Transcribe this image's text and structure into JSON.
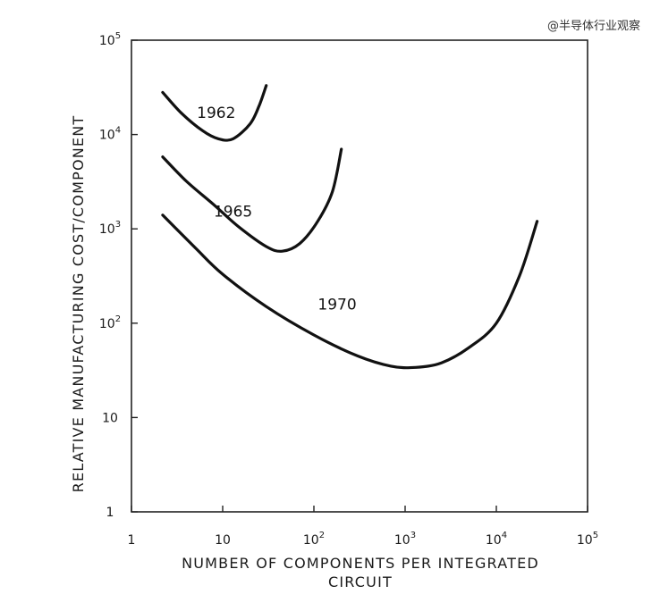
{
  "watermark": "@半导体行业观察",
  "chart_data": {
    "type": "line",
    "title": "",
    "xlabel_line1": "NUMBER OF COMPONENTS PER INTEGRATED",
    "xlabel_line2": "CIRCUIT",
    "ylabel": "RELATIVE MANUFACTURING COST/COMPONENT",
    "x_scale": "log",
    "y_scale": "log",
    "xlim": [
      1,
      100000
    ],
    "ylim": [
      1,
      100000
    ],
    "x_ticks": [
      {
        "value": 1,
        "base": "1",
        "exp": ""
      },
      {
        "value": 10,
        "base": "10",
        "exp": ""
      },
      {
        "value": 100,
        "base": "10",
        "exp": "2"
      },
      {
        "value": 1000,
        "base": "10",
        "exp": "3"
      },
      {
        "value": 10000,
        "base": "10",
        "exp": "4"
      },
      {
        "value": 100000,
        "base": "10",
        "exp": "5"
      }
    ],
    "y_ticks": [
      {
        "value": 1,
        "base": "1",
        "exp": ""
      },
      {
        "value": 10,
        "base": "10",
        "exp": ""
      },
      {
        "value": 100,
        "base": "10",
        "exp": "2"
      },
      {
        "value": 1000,
        "base": "10",
        "exp": "3"
      },
      {
        "value": 10000,
        "base": "10",
        "exp": "4"
      },
      {
        "value": 100000,
        "base": "10",
        "exp": "5"
      }
    ],
    "grid": false,
    "series": [
      {
        "name": "1962",
        "points": [
          [
            2.2,
            28000
          ],
          [
            3.5,
            17000
          ],
          [
            6,
            11000
          ],
          [
            9,
            9000
          ],
          [
            13,
            9000
          ],
          [
            20,
            13000
          ],
          [
            25,
            20000
          ],
          [
            30,
            33000
          ]
        ]
      },
      {
        "name": "1965",
        "points": [
          [
            2.2,
            5800
          ],
          [
            4,
            3200
          ],
          [
            8,
            1800
          ],
          [
            15,
            1050
          ],
          [
            30,
            650
          ],
          [
            45,
            580
          ],
          [
            70,
            700
          ],
          [
            110,
            1200
          ],
          [
            160,
            2500
          ],
          [
            200,
            7000
          ]
        ]
      },
      {
        "name": "1970",
        "points": [
          [
            2.2,
            1400
          ],
          [
            5,
            630
          ],
          [
            10,
            330
          ],
          [
            30,
            150
          ],
          [
            100,
            75
          ],
          [
            300,
            45
          ],
          [
            700,
            35
          ],
          [
            1300,
            34
          ],
          [
            2500,
            38
          ],
          [
            5000,
            55
          ],
          [
            10000,
            100
          ],
          [
            18000,
            320
          ],
          [
            28000,
            1200
          ]
        ]
      }
    ],
    "label_positions": [
      {
        "name": "1962",
        "x": 8.5,
        "y": 15000
      },
      {
        "name": "1965",
        "x": 13,
        "y": 1350
      },
      {
        "name": "1970",
        "x": 180,
        "y": 140
      }
    ]
  }
}
